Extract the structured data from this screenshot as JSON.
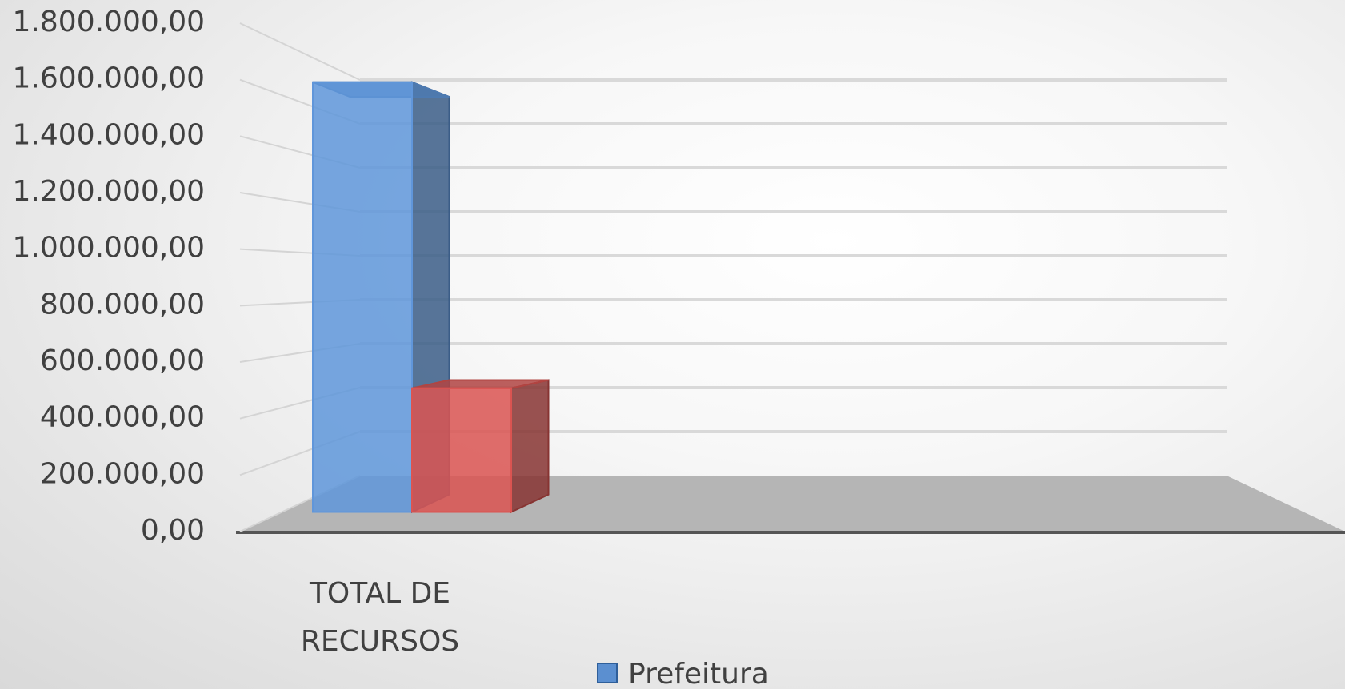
{
  "chart_data": {
    "type": "bar3d",
    "categories": [
      "TOTAL DE RECURSOS"
    ],
    "series": [
      {
        "name": "Prefeitura",
        "color": "#5b8fd0",
        "values": [
          1650000
        ]
      },
      {
        "color": "#d0504d",
        "values": [
          475000
        ]
      }
    ],
    "ylim": [
      0,
      1800000
    ],
    "yticks": [
      {
        "value": 0,
        "label": "0,00"
      },
      {
        "value": 200000,
        "label": "200.000,00"
      },
      {
        "value": 400000,
        "label": "400.000,00"
      },
      {
        "value": 600000,
        "label": "600.000,00"
      },
      {
        "value": 800000,
        "label": "800.000,00"
      },
      {
        "value": 1000000,
        "label": "1.000.000,00"
      },
      {
        "value": 1200000,
        "label": "1.200.000,00"
      },
      {
        "value": 1400000,
        "label": "1.400.000,00"
      },
      {
        "value": 1600000,
        "label": "1.600.000,00"
      },
      {
        "value": 1800000,
        "label": "1.800.000,00"
      }
    ],
    "grid": true
  }
}
